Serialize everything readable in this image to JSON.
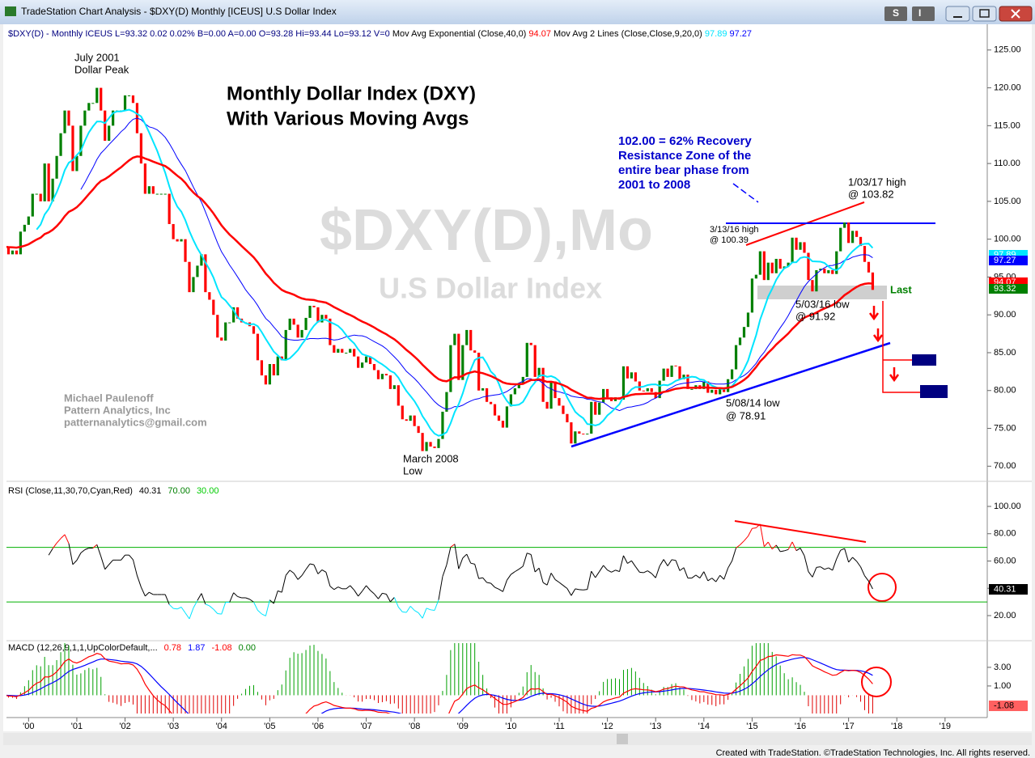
{
  "window_title": "TradeStation Chart Analysis - $DXY(D) Monthly [ICEUS] U.S Dollar Index",
  "toolbar": [
    "S",
    "I"
  ],
  "footer": "Created with TradeStation. ©TradeStation Technologies, Inc. All rights reserved.",
  "chart_data": {
    "type": "candlestick",
    "title": "Monthly Dollar Index (DXY)",
    "subtitle": "With Various Moving Avgs",
    "watermark": "$DXY(D),Mo",
    "watermark_sub": "U.S Dollar Index",
    "header": [
      {
        "text": "$DXY(D) - Monthly  ICEUS  L=93.32  0.02  0.02%  B=0.00  A=0.00  O=93.28  Hi=93.44  Lo=93.12  V=0  ",
        "color": "#000080"
      },
      {
        "text": "Mov Avg Exponential (Close,40,0)  ",
        "color": "#000000"
      },
      {
        "text": "94.07  ",
        "color": "#ff0000"
      },
      {
        "text": "Mov Avg 2 Lines (Close,Close,9,20,0)  ",
        "color": "#000000"
      },
      {
        "text": "97.89  ",
        "color": "#00e5ff"
      },
      {
        "text": "97.27",
        "color": "#0000ff"
      }
    ],
    "up_color": "#008000",
    "down_color": "#ff0000",
    "values": [
      99,
      98,
      98.5,
      98,
      101,
      101.9,
      103,
      106,
      106,
      105,
      110,
      105,
      108,
      111,
      114,
      117,
      115,
      109,
      111,
      115,
      117,
      118,
      118,
      120,
      117,
      113,
      115,
      117,
      117,
      117,
      119,
      119,
      118,
      114,
      110,
      106,
      107,
      106,
      106,
      106,
      106,
      102,
      100,
      99.7,
      100,
      97,
      93,
      95,
      96.5,
      98,
      93,
      92,
      90,
      87,
      86.6,
      89,
      89,
      91,
      89.5,
      89,
      89,
      88.5,
      87.5,
      84,
      82,
      80.8,
      83.5,
      82,
      84.5,
      84,
      88,
      89.5,
      88.7,
      87,
      88,
      89.6,
      91.2,
      91,
      89,
      90,
      89.5,
      86,
      85,
      85.5,
      85,
      85,
      85.5,
      84.5,
      83,
      83.7,
      84.5,
      83.5,
      82.7,
      81.5,
      82.2,
      82,
      80.2,
      80.7,
      78,
      76.2,
      76,
      76.7,
      75.3,
      74.4,
      72,
      73.2,
      72.6,
      72.4,
      73.6,
      77.2,
      79.8,
      86,
      87.5,
      81.4,
      86,
      88,
      85.3,
      85,
      80,
      80.3,
      78.5,
      78.2,
      76.7,
      76,
      75.1,
      77.9,
      79.5,
      80.3,
      81,
      81.8,
      86.3,
      86,
      81.8,
      83,
      78.5,
      77.6,
      81.2,
      79,
      78,
      76.9,
      75.8,
      73,
      74.6,
      74.3,
      74.2,
      74.3,
      78.5,
      76.8,
      78.4,
      80.2,
      79.1,
      78.6,
      79.1,
      78.8,
      83.2,
      81.6,
      82.4,
      81.2,
      80,
      79.9,
      80.3,
      79.8,
      79,
      81.3,
      82.9,
      81.8,
      83.3,
      83.2,
      81.5,
      82.1,
      80.2,
      80.2,
      80.7,
      80.2,
      81.2,
      79.7,
      80.1,
      79.5,
      80.4,
      79.8,
      81.5,
      82.8,
      86,
      87,
      88.4,
      90.3,
      94.8,
      95.3,
      98.4,
      94.6,
      96.9,
      95.5,
      97.4,
      96.1,
      96.4,
      96.9,
      100.2,
      98.6,
      99.6,
      98.2,
      94.6,
      93.1,
      95.9,
      96.1,
      95.5,
      95.9,
      95.4,
      98.4,
      101.5,
      102.2,
      99.5,
      101.1,
      100.3,
      99.1,
      97,
      95.6,
      93.3
    ],
    "xlim": [
      0.5,
      244.5
    ],
    "xticks": [
      {
        "value": 6,
        "label": "'00"
      },
      {
        "value": 18,
        "label": "'01"
      },
      {
        "value": 30,
        "label": "'02"
      },
      {
        "value": 42,
        "label": "'03"
      },
      {
        "value": 54,
        "label": "'04"
      },
      {
        "value": 66,
        "label": "'05"
      },
      {
        "value": 78,
        "label": "'06"
      },
      {
        "value": 90,
        "label": "'07"
      },
      {
        "value": 102,
        "label": "'08"
      },
      {
        "value": 114,
        "label": "'09"
      },
      {
        "value": 126,
        "label": "'10"
      },
      {
        "value": 138,
        "label": "'11"
      },
      {
        "value": 150,
        "label": "'12"
      },
      {
        "value": 162,
        "label": "'13"
      },
      {
        "value": 174,
        "label": "'14"
      },
      {
        "value": 186,
        "label": "'15"
      },
      {
        "value": 198,
        "label": "'16"
      },
      {
        "value": 210,
        "label": "'17"
      },
      {
        "value": 222,
        "label": "'18"
      },
      {
        "value": 234,
        "label": "'19"
      }
    ],
    "ylim": [
      68,
      128.4
    ],
    "yticks": [
      {
        "value": 70,
        "label": "70.00"
      },
      {
        "value": 75,
        "label": "75.00"
      },
      {
        "value": 80,
        "label": "80.00"
      },
      {
        "value": 85,
        "label": "85.00"
      },
      {
        "value": 90,
        "label": "90.00"
      },
      {
        "value": 95,
        "label": "95.00"
      },
      {
        "value": 100,
        "label": "100.00"
      },
      {
        "value": 105,
        "label": "105.00"
      },
      {
        "value": 110,
        "label": "110.00"
      },
      {
        "value": 115,
        "label": "115.00"
      },
      {
        "value": 120,
        "label": "120.00"
      },
      {
        "value": 125,
        "label": "125.00"
      }
    ],
    "ema_period": 40,
    "ema_color": "#ff0000",
    "sma_periods": [
      9,
      20
    ],
    "sma_colors": [
      "#00e5ff",
      "#0000ff"
    ],
    "last_labels": [
      {
        "text": "97.89",
        "color": "#00e5ff"
      },
      {
        "text": "97.27",
        "color": "#0000ff"
      },
      {
        "text": "94.07",
        "color": "#ff0000"
      },
      {
        "text": "93.32",
        "color": "#008000"
      }
    ],
    "annotations": [
      "July 2001",
      "Dollar Peak",
      "102.00 = 62% Recovery",
      "Resistance Zone of the",
      "entire bear phase from",
      "2001 to 2008",
      "1/03/17 high",
      "@ 103.82",
      "3/13/16 high",
      "@ 100.39",
      "5/03/16 low",
      "@ 91.92",
      "5/08/14 low",
      "@ 78.91",
      "March 2008",
      "Low",
      "Michael Paulenoff",
      "Pattern Analytics, Inc",
      "patternanalytics@gmail.com",
      "Last"
    ],
    "rsi": {
      "label": "RSI (Close,11,30,70,Cyan,Red)",
      "readouts": [
        {
          "text": "40.31",
          "color": "#000000"
        },
        {
          "text": "70.00",
          "color": "#008000"
        },
        {
          "text": "30.00",
          "color": "#00cc00"
        }
      ],
      "period": 11,
      "levels": [
        70,
        30
      ],
      "ylim": [
        2.8,
        116.6
      ],
      "yticks": [
        {
          "value": 20,
          "label": "20.00"
        },
        {
          "value": 40,
          "label": "40.00"
        },
        {
          "value": 60,
          "label": "60.00"
        },
        {
          "value": 80,
          "label": "80.00"
        },
        {
          "value": 100,
          "label": "100.00"
        }
      ],
      "last": "40.31"
    },
    "macd": {
      "label": "MACD (12,26,9,1,1,UpColorDefault,...",
      "readouts": [
        {
          "text": "0.78",
          "color": "#ff0000"
        },
        {
          "text": "1.87",
          "color": "#0000ff"
        },
        {
          "text": "-1.08",
          "color": "#ff0000"
        },
        {
          "text": "0.00",
          "color": "#008000"
        }
      ],
      "periods": [
        12,
        26,
        9
      ],
      "ylim": [
        -1.96,
        5.6
      ],
      "yticks": [
        {
          "value": 1,
          "label": "1.00"
        },
        {
          "value": 3,
          "label": "3.00"
        }
      ],
      "last": "-1.08"
    }
  }
}
